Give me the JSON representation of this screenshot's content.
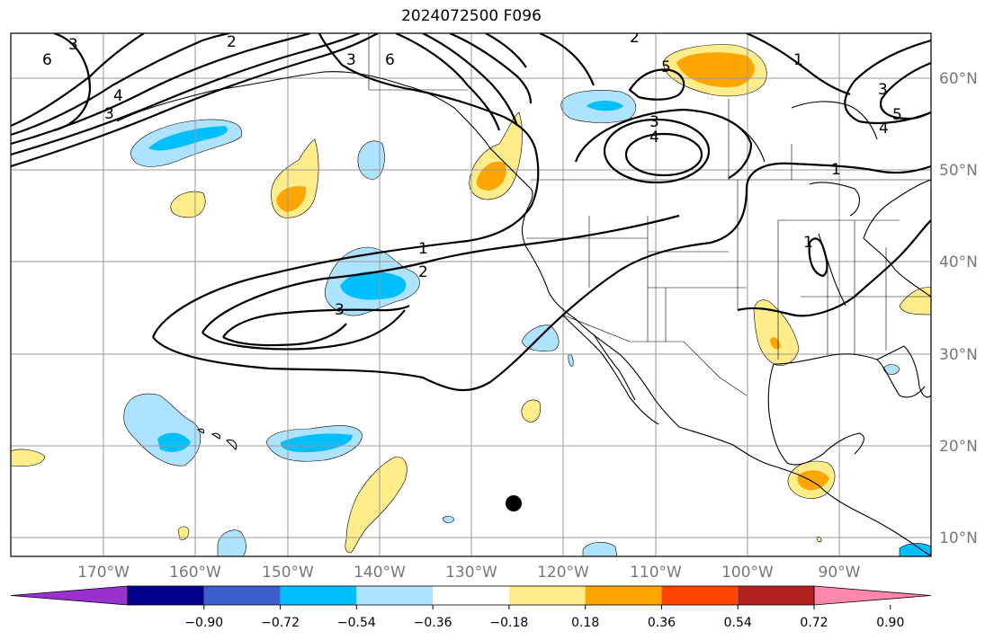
{
  "title": "2024072500 F096",
  "longitude_labels": [
    "170°W",
    "160°W",
    "150°W",
    "140°W",
    "130°W",
    "120°W",
    "110°W",
    "100°W",
    "90°W"
  ],
  "latitude_labels": [
    "60°N",
    "50°N",
    "40°N",
    "30°N",
    "20°N",
    "10°N"
  ],
  "colorbar": {
    "colors": [
      "#9932cc",
      "#00008b",
      "#3a5fcd",
      "#00bfff",
      "#aee3ff",
      "#ffffff",
      "#ffec8b",
      "#ffa500",
      "#ff4500",
      "#b22222",
      "#ff88aa"
    ],
    "tick_labels": [
      "−0.90",
      "−0.72",
      "−0.54",
      "−0.36",
      "−0.18",
      "0.18",
      "0.36",
      "0.54",
      "0.72",
      "0.90"
    ]
  },
  "contour_labels": [
    "6",
    "5",
    "4",
    "3",
    "2",
    "1"
  ],
  "marker": "storm-center-dot"
}
